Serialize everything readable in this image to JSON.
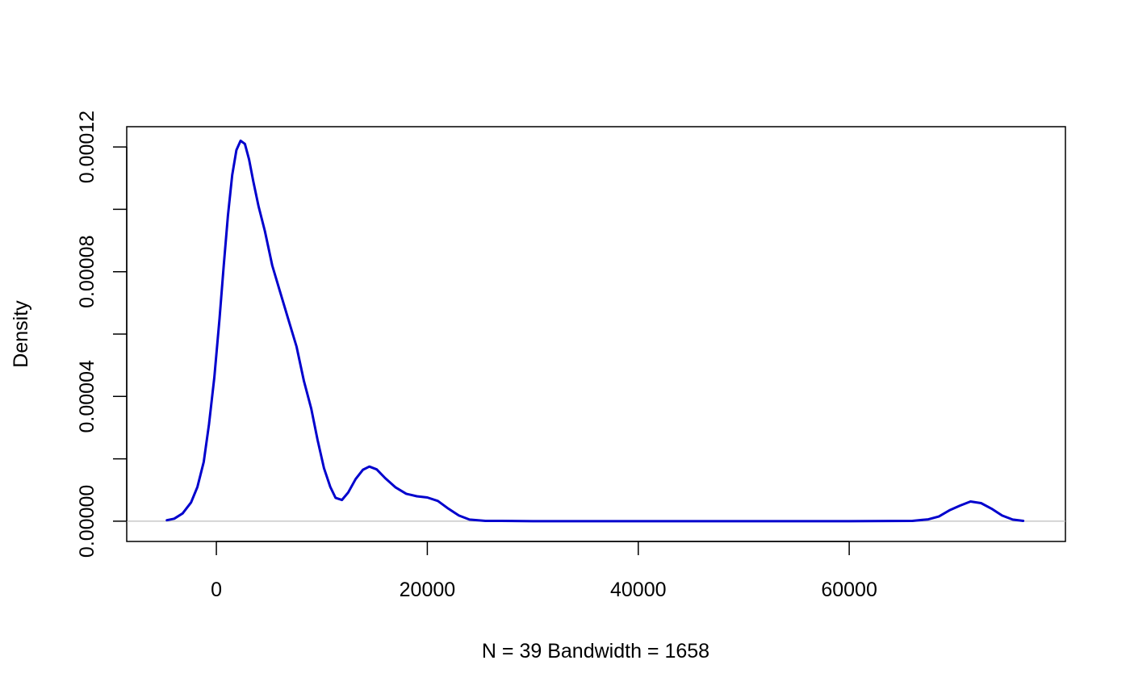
{
  "chart_data": {
    "type": "line",
    "title": "",
    "xlabel": "N = 39   Bandwidth = 1658",
    "ylabel": "Density",
    "xlim": [
      -8500,
      80500
    ],
    "ylim": [
      -6.5e-06,
      0.0001265
    ],
    "x_ticks": [
      0,
      20000,
      40000,
      60000
    ],
    "x_tick_labels": [
      "0",
      "20000",
      "40000",
      "60000"
    ],
    "y_ticks": [
      0,
      2e-05,
      4e-05,
      6e-05,
      8e-05,
      0.0001,
      0.00012
    ],
    "y_tick_labels": [
      "0.00000",
      "",
      "0.00004",
      "",
      "0.00008",
      "",
      "0.00012"
    ],
    "grid": false,
    "baseline": 0,
    "line_color": "#0000cd",
    "baseline_color": "#bebebe",
    "series": [
      {
        "x": [
          -4700,
          -4000,
          -3200,
          -2400,
          -1800,
          -1200,
          -700,
          -200,
          300,
          700,
          1100,
          1500,
          1900,
          2300,
          2700,
          3100,
          3500,
          4000,
          4600,
          5300,
          6000,
          6800,
          7600,
          8300,
          9000,
          9600,
          10200,
          10800,
          11300,
          11900,
          12500,
          13200,
          13900,
          14500,
          15200,
          16000,
          17000,
          18000,
          19000,
          20000,
          21000,
          22000,
          23000,
          24000,
          25500,
          27000,
          30000,
          40000,
          50000,
          60000,
          66000,
          67500,
          68500,
          69500,
          70500,
          71500,
          72500,
          73500,
          74500,
          75500,
          76500
        ],
        "y": [
          3e-07,
          8e-07,
          2.5e-06,
          6e-06,
          1.1e-05,
          1.9e-05,
          3.1e-05,
          4.6e-05,
          6.5e-05,
          8.2e-05,
          9.8e-05,
          0.000111,
          0.000119,
          0.000122,
          0.000121,
          0.000116,
          0.000109,
          0.000101,
          9.3e-05,
          8.2e-05,
          7.4e-05,
          6.5e-05,
          5.6e-05,
          4.5e-05,
          3.6e-05,
          2.6e-05,
          1.7e-05,
          1.1e-05,
          7.5e-06,
          6.8e-06,
          9.2e-06,
          1.35e-05,
          1.65e-05,
          1.75e-05,
          1.66e-05,
          1.38e-05,
          1.08e-05,
          8.8e-06,
          8e-06,
          7.6e-06,
          6.5e-06,
          4e-06,
          1.8e-06,
          5e-07,
          1e-07,
          1e-07,
          0.0,
          0.0,
          0.0,
          0.0,
          1e-07,
          6e-07,
          1.5e-06,
          3.5e-06,
          5e-06,
          6.3e-06,
          5.8e-06,
          4e-06,
          1.8e-06,
          5e-07,
          1e-07
        ]
      }
    ]
  }
}
